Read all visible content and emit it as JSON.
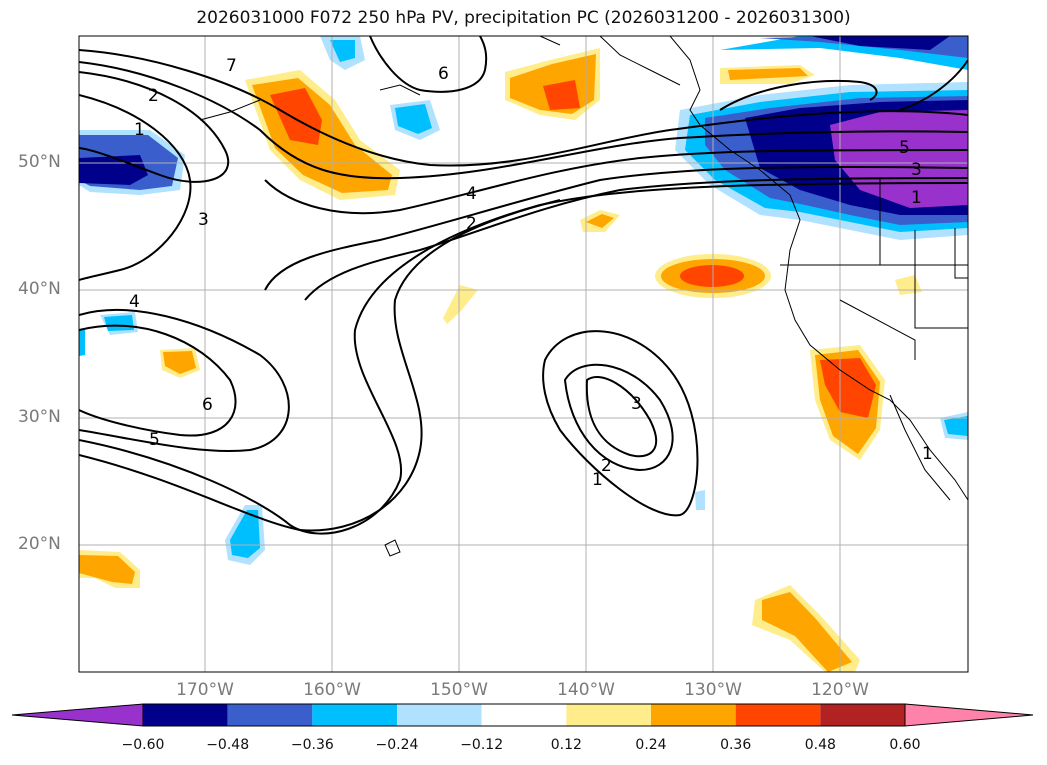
{
  "title": "2026031000 F072 250 hPa PV, precipitation PC (2026031200 - 2026031300)",
  "map": {
    "lat_labels": [
      "50°N",
      "40°N",
      "30°N",
      "20°N"
    ],
    "lon_labels": [
      "170°W",
      "160°W",
      "150°W",
      "140°W",
      "130°W",
      "120°W"
    ],
    "contour_labels": [
      {
        "text": "7",
        "label": "pv-contour-7-north"
      },
      {
        "text": "2",
        "label": "pv-contour-2-west"
      },
      {
        "text": "1",
        "label": "pv-contour-1-west"
      },
      {
        "text": "6",
        "label": "pv-contour-6-north"
      },
      {
        "text": "3",
        "label": "pv-contour-3-west"
      },
      {
        "text": "4",
        "label": "pv-contour-4-central"
      },
      {
        "text": "2",
        "label": "pv-contour-2-central"
      },
      {
        "text": "4",
        "label": "pv-contour-4-southwest"
      },
      {
        "text": "6",
        "label": "pv-contour-6-southwest"
      },
      {
        "text": "5",
        "label": "pv-contour-5-southwest"
      },
      {
        "text": "3",
        "label": "pv-contour-3-low"
      },
      {
        "text": "2",
        "label": "pv-contour-2-low"
      },
      {
        "text": "1",
        "label": "pv-contour-1-low"
      },
      {
        "text": "5",
        "label": "pv-contour-5-northeast"
      },
      {
        "text": "3",
        "label": "pv-contour-3-northeast"
      },
      {
        "text": "1",
        "label": "pv-contour-1-northeast"
      },
      {
        "text": "1",
        "label": "pv-contour-1-baja"
      }
    ]
  },
  "colorbar": {
    "ticks": [
      "−0.60",
      "−0.48",
      "−0.36",
      "−0.24",
      "−0.12",
      "0.12",
      "0.24",
      "0.36",
      "0.48",
      "0.60"
    ],
    "colors": [
      "#9932cc",
      "#00008b",
      "#3a5fcd",
      "#00bfff",
      "#b0e2ff",
      "#ffffff",
      "#ffec8b",
      "#ffa500",
      "#ff4500",
      "#b22222",
      "#ff82ab"
    ]
  }
}
